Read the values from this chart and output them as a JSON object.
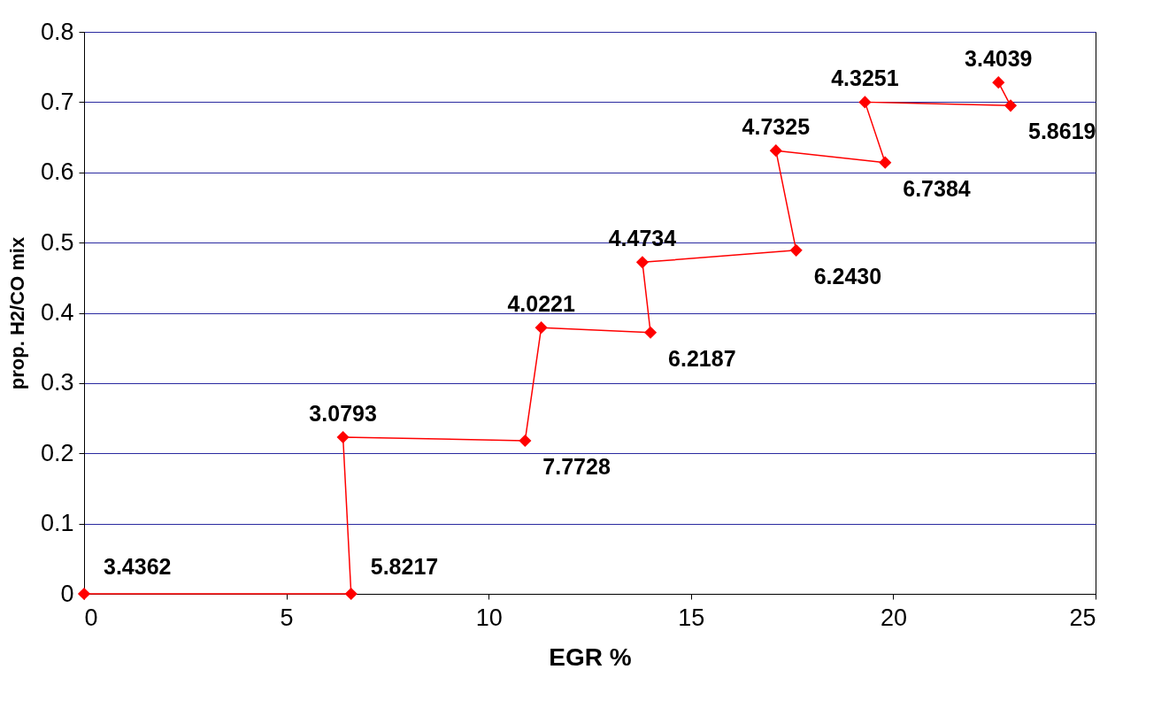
{
  "chart_data": {
    "type": "line",
    "xlabel": "EGR %",
    "ylabel": "prop. H2/CO mix",
    "x": [
      0,
      6.6,
      6.4,
      10.9,
      11.3,
      14.0,
      13.8,
      17.6,
      17.1,
      19.8,
      19.3,
      22.9,
      22.6
    ],
    "series": [
      {
        "color": "#ff0000",
        "values": [
          0,
          0,
          0.223,
          0.218,
          0.379,
          0.372,
          0.472,
          0.489,
          0.631,
          0.614,
          0.7,
          0.695,
          0.728
        ]
      }
    ],
    "annotations": [
      {
        "text": "3.4362",
        "x": 0,
        "y": 0
      },
      {
        "text": "5.8217",
        "x": 6.6,
        "y": 0
      },
      {
        "text": "3.0793",
        "x": 6.4,
        "y": 0.223
      },
      {
        "text": "7.7728",
        "x": 10.9,
        "y": 0.218
      },
      {
        "text": "4.0221",
        "x": 11.3,
        "y": 0.379
      },
      {
        "text": "6.2187",
        "x": 14.0,
        "y": 0.372
      },
      {
        "text": "4.4734",
        "x": 13.8,
        "y": 0.472
      },
      {
        "text": "6.2430",
        "x": 17.6,
        "y": 0.489
      },
      {
        "text": "4.7325",
        "x": 17.1,
        "y": 0.631
      },
      {
        "text": "6.7384",
        "x": 19.8,
        "y": 0.614
      },
      {
        "text": "4.3251",
        "x": 19.3,
        "y": 0.7
      },
      {
        "text": "5.8619",
        "x": 22.9,
        "y": 0.695
      },
      {
        "text": "3.4039",
        "x": 22.6,
        "y": 0.728
      }
    ],
    "xlim": [
      0,
      25
    ],
    "xticks": [
      0,
      5,
      10,
      15,
      20,
      25
    ],
    "ylim": [
      0,
      0.8
    ],
    "yticks": [
      0,
      0.1,
      0.2,
      0.3,
      0.4,
      0.5,
      0.6,
      0.7,
      0.8
    ],
    "grid": "y",
    "marker": "diamond",
    "line_style": "solid"
  }
}
